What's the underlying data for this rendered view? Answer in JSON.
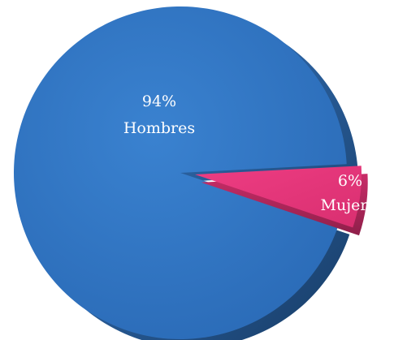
{
  "chart_data": {
    "type": "pie",
    "slices": [
      {
        "label": "Hombres",
        "value": 94,
        "value_text": "94%",
        "color": "#2f73c1"
      },
      {
        "label": "Mujeres",
        "value": 6,
        "value_text": "6%",
        "color": "#e33779"
      }
    ],
    "legend": "none",
    "style": "3d-exploded-slice"
  }
}
